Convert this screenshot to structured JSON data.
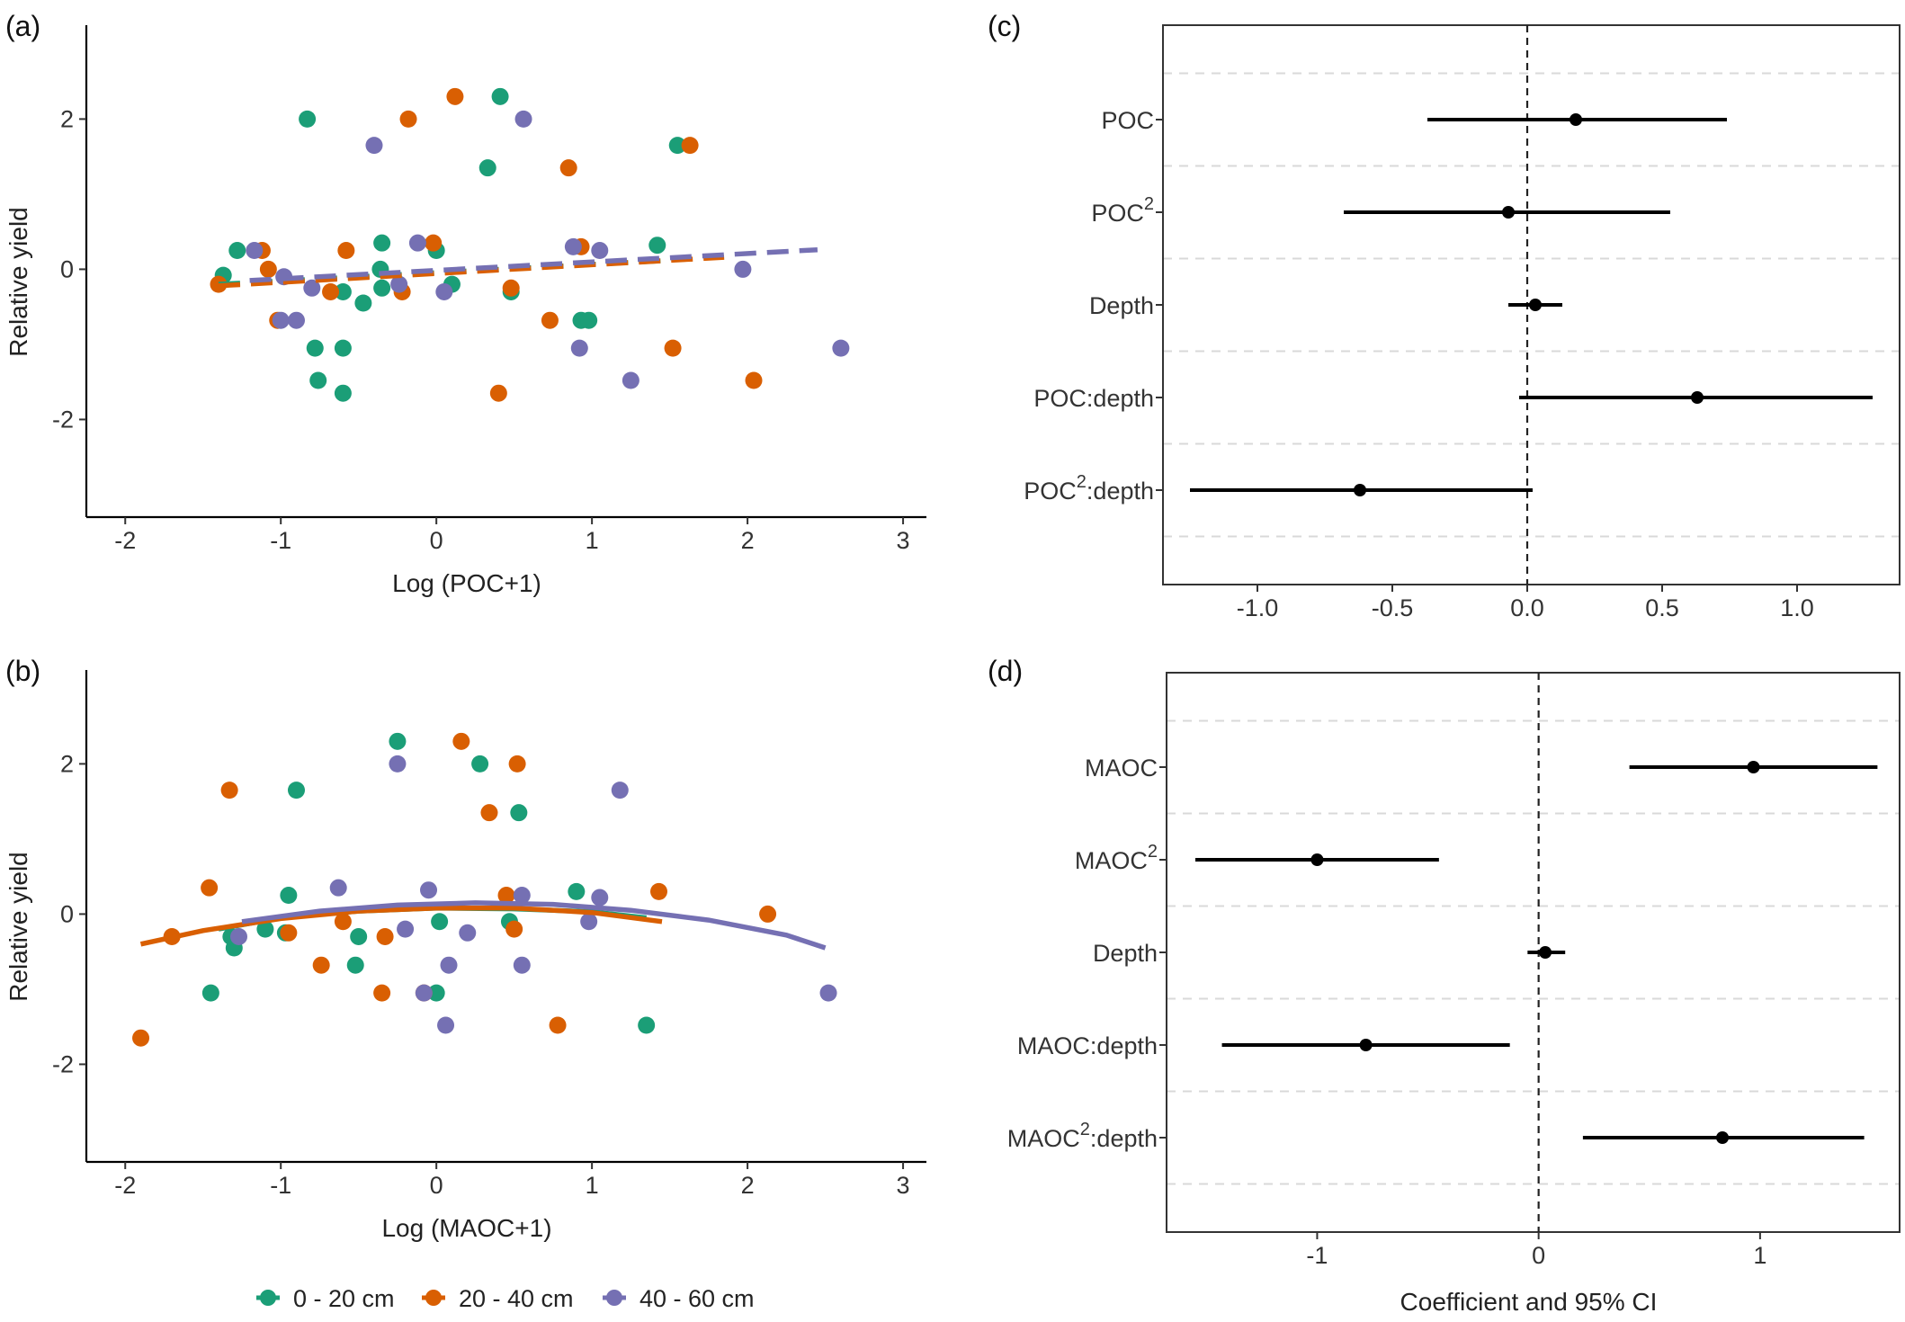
{
  "colors": {
    "0-20": "#1b9e77",
    "20-40": "#d95f02",
    "40-60": "#7570b3",
    "estimate": "#000000",
    "grid": "#d9d9d9"
  },
  "legend": {
    "items": [
      {
        "key": "0-20",
        "label": "0 - 20 cm"
      },
      {
        "key": "20-40",
        "label": "20 - 40 cm"
      },
      {
        "key": "40-60",
        "label": "40 - 60 cm"
      }
    ]
  },
  "chart_data": [
    {
      "panel": "(a)",
      "type": "scatter",
      "xlabel": "Log (POC+1)",
      "ylabel": "Relative yield",
      "xlim": [
        -2.25,
        3.15
      ],
      "ylim": [
        -3.3,
        3.25
      ],
      "xticks": [
        -2,
        -1,
        0,
        1,
        2,
        3
      ],
      "yticks": [
        -2,
        0,
        2
      ],
      "series": [
        {
          "name": "0 - 20 cm",
          "key": "0-20",
          "points": [
            [
              -0.83,
              2.0
            ],
            [
              0.41,
              2.3
            ],
            [
              0.33,
              1.35
            ],
            [
              1.55,
              1.65
            ],
            [
              -1.37,
              -0.08
            ],
            [
              -1.28,
              0.25
            ],
            [
              -0.35,
              0.35
            ],
            [
              -0.36,
              0.0
            ],
            [
              -0.35,
              -0.25
            ],
            [
              0.0,
              0.25
            ],
            [
              0.1,
              -0.2
            ],
            [
              -0.47,
              -0.45
            ],
            [
              -0.6,
              -0.3
            ],
            [
              -0.78,
              -1.05
            ],
            [
              -0.76,
              -1.48
            ],
            [
              -0.6,
              -1.05
            ],
            [
              -0.6,
              -1.65
            ],
            [
              0.48,
              -0.3
            ],
            [
              0.93,
              -0.68
            ],
            [
              0.98,
              -0.68
            ],
            [
              1.42,
              0.32
            ]
          ],
          "fit": {
            "style": "dashed",
            "x": [
              -1.4,
              1.5
            ],
            "y": [
              -0.2,
              0.12
            ]
          }
        },
        {
          "name": "20 - 40 cm",
          "key": "20-40",
          "points": [
            [
              0.12,
              2.3
            ],
            [
              -0.18,
              2.0
            ],
            [
              0.85,
              1.35
            ],
            [
              1.63,
              1.65
            ],
            [
              -1.4,
              -0.2
            ],
            [
              -1.12,
              0.25
            ],
            [
              -1.08,
              0.0
            ],
            [
              -1.02,
              -0.68
            ],
            [
              -0.58,
              0.25
            ],
            [
              -0.68,
              -0.3
            ],
            [
              -0.22,
              -0.3
            ],
            [
              -0.02,
              0.35
            ],
            [
              0.48,
              -0.25
            ],
            [
              0.4,
              -1.65
            ],
            [
              0.73,
              -0.68
            ],
            [
              0.93,
              0.3
            ],
            [
              1.52,
              -1.05
            ],
            [
              2.04,
              -1.48
            ]
          ],
          "fit": {
            "style": "dashed",
            "x": [
              -1.4,
              1.85
            ],
            "y": [
              -0.22,
              0.16
            ]
          }
        },
        {
          "name": "40 - 60 cm",
          "key": "40-60",
          "points": [
            [
              -0.4,
              1.65
            ],
            [
              0.56,
              2.0
            ],
            [
              -1.17,
              0.25
            ],
            [
              -0.9,
              -0.68
            ],
            [
              -1.0,
              -0.68
            ],
            [
              -0.98,
              -0.1
            ],
            [
              -0.8,
              -0.25
            ],
            [
              -0.24,
              -0.2
            ],
            [
              -0.12,
              0.35
            ],
            [
              0.05,
              -0.3
            ],
            [
              0.88,
              0.3
            ],
            [
              1.05,
              0.25
            ],
            [
              0.92,
              -1.05
            ],
            [
              1.25,
              -1.48
            ],
            [
              1.97,
              0.0
            ],
            [
              2.6,
              -1.05
            ]
          ],
          "fit": {
            "style": "dashed",
            "x": [
              -1.2,
              2.45
            ],
            "y": [
              -0.15,
              0.26
            ]
          }
        }
      ]
    },
    {
      "panel": "(b)",
      "type": "scatter",
      "xlabel": "Log (MAOC+1)",
      "ylabel": "Relative yield",
      "xlim": [
        -2.25,
        3.15
      ],
      "ylim": [
        -3.3,
        3.25
      ],
      "xticks": [
        -2,
        -1,
        0,
        1,
        2,
        3
      ],
      "yticks": [
        -2,
        0,
        2
      ],
      "series": [
        {
          "name": "0 - 20 cm",
          "key": "0-20",
          "points": [
            [
              -0.25,
              2.3
            ],
            [
              0.28,
              2.0
            ],
            [
              -0.9,
              1.65
            ],
            [
              0.53,
              1.35
            ],
            [
              -0.95,
              0.25
            ],
            [
              -1.32,
              -0.3
            ],
            [
              -1.3,
              -0.45
            ],
            [
              -1.45,
              -1.05
            ],
            [
              -1.1,
              -0.2
            ],
            [
              -0.97,
              -0.25
            ],
            [
              -0.5,
              -0.3
            ],
            [
              -0.52,
              -0.68
            ],
            [
              0.02,
              -0.1
            ],
            [
              0.0,
              -1.05
            ],
            [
              0.47,
              -0.1
            ],
            [
              0.9,
              0.3
            ],
            [
              1.35,
              -1.48
            ]
          ],
          "fit": {
            "style": "solid",
            "x": [
              -1.4,
              -1.0,
              -0.5,
              0.0,
              0.5,
              1.0,
              1.35
            ],
            "y": [
              -0.2,
              -0.05,
              0.04,
              0.08,
              0.07,
              0.03,
              -0.05
            ]
          }
        },
        {
          "name": "20 - 40 cm",
          "key": "20-40",
          "points": [
            [
              0.16,
              2.3
            ],
            [
              0.52,
              2.0
            ],
            [
              -1.33,
              1.65
            ],
            [
              0.34,
              1.35
            ],
            [
              -1.46,
              0.35
            ],
            [
              -1.7,
              -0.3
            ],
            [
              -1.9,
              -1.65
            ],
            [
              -0.95,
              -0.25
            ],
            [
              -0.74,
              -0.68
            ],
            [
              -0.6,
              -0.1
            ],
            [
              -0.33,
              -0.3
            ],
            [
              -0.35,
              -1.05
            ],
            [
              -0.08,
              -1.05
            ],
            [
              0.45,
              0.25
            ],
            [
              0.5,
              -0.2
            ],
            [
              0.78,
              -1.48
            ],
            [
              1.43,
              0.3
            ],
            [
              2.13,
              0.0
            ]
          ],
          "fit": {
            "style": "solid",
            "x": [
              -1.9,
              -1.5,
              -1.0,
              -0.5,
              0.0,
              0.5,
              1.0,
              1.45
            ],
            "y": [
              -0.4,
              -0.22,
              -0.06,
              0.04,
              0.08,
              0.08,
              0.02,
              -0.1
            ]
          }
        },
        {
          "name": "40 - 60 cm",
          "key": "40-60",
          "points": [
            [
              -0.25,
              2.0
            ],
            [
              1.18,
              1.65
            ],
            [
              -0.63,
              0.35
            ],
            [
              -0.05,
              0.32
            ],
            [
              0.55,
              0.25
            ],
            [
              1.05,
              0.22
            ],
            [
              -1.27,
              -0.3
            ],
            [
              -0.2,
              -0.2
            ],
            [
              0.08,
              -0.68
            ],
            [
              0.2,
              -0.25
            ],
            [
              0.55,
              -0.68
            ],
            [
              -0.08,
              -1.05
            ],
            [
              0.06,
              -1.48
            ],
            [
              0.98,
              -0.1
            ],
            [
              2.52,
              -1.05
            ]
          ],
          "fit": {
            "style": "solid",
            "x": [
              -1.25,
              -0.75,
              -0.25,
              0.25,
              0.75,
              1.25,
              1.75,
              2.25,
              2.5
            ],
            "y": [
              -0.1,
              0.04,
              0.12,
              0.15,
              0.13,
              0.05,
              -0.08,
              -0.28,
              -0.45
            ]
          }
        }
      ]
    },
    {
      "panel": "(c)",
      "type": "forest",
      "xlabel": "",
      "xlim": [
        -1.35,
        1.38
      ],
      "xticks": [
        -1.0,
        -0.5,
        0.0,
        0.5,
        1.0
      ],
      "xtick_labels": [
        "-1.0",
        "-0.5",
        "0.0",
        "0.5",
        "1.0"
      ],
      "reference_line": 0,
      "terms": [
        {
          "label": "POC",
          "sup": "",
          "after": "",
          "estimate": 0.18,
          "low": -0.37,
          "high": 0.74
        },
        {
          "label": "POC",
          "sup": "2",
          "after": "",
          "estimate": -0.07,
          "low": -0.68,
          "high": 0.53
        },
        {
          "label": "Depth",
          "sup": "",
          "after": "",
          "estimate": 0.03,
          "low": -0.07,
          "high": 0.13
        },
        {
          "label": "POC:depth",
          "sup": "",
          "after": "",
          "estimate": 0.63,
          "low": -0.03,
          "high": 1.28
        },
        {
          "label": "POC",
          "sup": "2",
          "after": ":depth",
          "estimate": -0.62,
          "low": -1.25,
          "high": 0.02
        }
      ]
    },
    {
      "panel": "(d)",
      "type": "forest",
      "xlabel": "Coefficient and 95% CI",
      "xlim": [
        -1.68,
        1.63
      ],
      "xticks": [
        -1,
        0,
        1
      ],
      "xtick_labels": [
        "-1",
        "0",
        "1"
      ],
      "reference_line": 0,
      "terms": [
        {
          "label": "MAOC",
          "sup": "",
          "after": "",
          "estimate": 0.97,
          "low": 0.41,
          "high": 1.53
        },
        {
          "label": "MAOC",
          "sup": "2",
          "after": "",
          "estimate": -1.0,
          "low": -1.55,
          "high": -0.45
        },
        {
          "label": "Depth",
          "sup": "",
          "after": "",
          "estimate": 0.03,
          "low": -0.05,
          "high": 0.12
        },
        {
          "label": "MAOC:depth",
          "sup": "",
          "after": "",
          "estimate": -0.78,
          "low": -1.43,
          "high": -0.13
        },
        {
          "label": "MAOC",
          "sup": "2",
          "after": ":depth",
          "estimate": 0.83,
          "low": 0.2,
          "high": 1.47
        }
      ]
    }
  ]
}
